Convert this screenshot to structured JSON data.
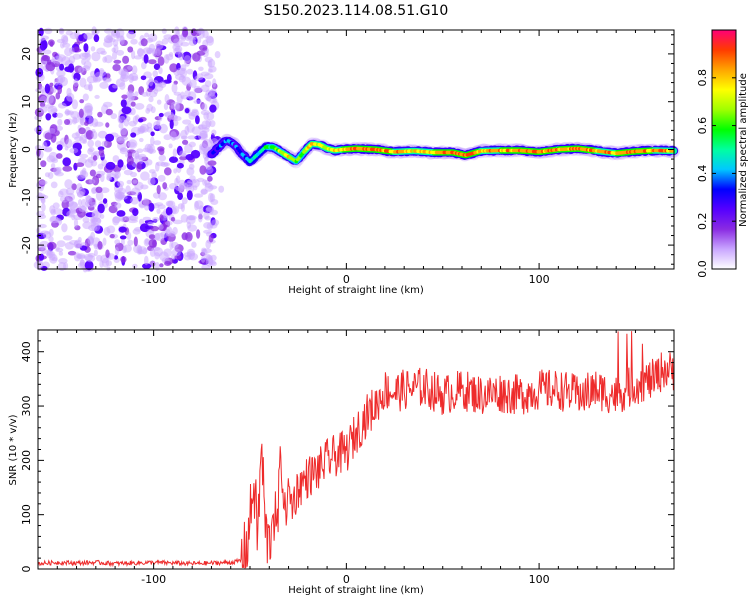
{
  "title": "S150.2023.114.08.51.G10",
  "colors": {
    "snr_line": "#ee2b2b",
    "frame": "#000000",
    "colormap": [
      "#ffffff",
      "#c9a6ff",
      "#8a2be2",
      "#5500ff",
      "#0000ff",
      "#00c8ff",
      "#00ffa0",
      "#00ff00",
      "#a0ff00",
      "#ffff00",
      "#ffa500",
      "#ff3b00",
      "#ff0077"
    ]
  },
  "chart_data": [
    {
      "type": "heatmap",
      "name": "spectrogram",
      "xlabel": "Height of straight line (km)",
      "ylabel": "Frequency (Hz)",
      "xlim": [
        -160,
        170
      ],
      "ylim": [
        -25,
        25
      ],
      "xticks": [
        -100,
        0,
        100
      ],
      "yticks": [
        -20,
        -10,
        0,
        10,
        20
      ],
      "colorbar": {
        "label": "Normalized spectral amplitude",
        "range": [
          0.0,
          1.0
        ],
        "ticks": [
          "0.0",
          "0.2",
          "0.4",
          "0.6",
          "0.8"
        ],
        "tick_values": [
          0.0,
          0.2,
          0.4,
          0.6,
          0.8
        ]
      },
      "noise_region_x": [
        -160,
        -68
      ],
      "signal_ridge": {
        "x": [
          -70,
          -66,
          -62,
          -58,
          -54,
          -50,
          -46,
          -42,
          -38,
          -34,
          -30,
          -26,
          -22,
          -18,
          -14,
          -10,
          -6,
          -2,
          5,
          15,
          25,
          35,
          45,
          55,
          62,
          70,
          80,
          90,
          100,
          110,
          120,
          130,
          140,
          150,
          160,
          170
        ],
        "freq_hz": [
          -1.0,
          0.5,
          2.0,
          1.0,
          -1.0,
          -2.5,
          -1.0,
          0.5,
          0.5,
          -0.5,
          -1.5,
          -2.5,
          -0.5,
          1.2,
          1.0,
          0.2,
          -0.2,
          0.0,
          0.2,
          0.0,
          -0.5,
          -0.3,
          -0.6,
          -0.6,
          -1.2,
          -0.3,
          -0.2,
          -0.2,
          -0.5,
          0.0,
          0.2,
          -0.3,
          -0.8,
          -0.4,
          -0.2,
          -0.3
        ],
        "amplitude": [
          0.35,
          0.4,
          0.45,
          0.4,
          0.45,
          0.5,
          0.55,
          0.6,
          0.7,
          0.75,
          0.8,
          0.7,
          0.75,
          0.85,
          0.8,
          0.8,
          0.85,
          0.9,
          0.95,
          0.95,
          0.9,
          0.85,
          0.9,
          0.95,
          0.95,
          0.9,
          0.9,
          0.95,
          0.95,
          0.9,
          0.95,
          0.9,
          0.9,
          0.95,
          0.9,
          0.9
        ]
      }
    },
    {
      "type": "line",
      "name": "snr",
      "xlabel": "Height of straight line (km)",
      "ylabel": "SNR (10 * v/v)",
      "xlim": [
        -160,
        170
      ],
      "ylim": [
        0,
        440
      ],
      "xticks": [
        -100,
        0,
        100
      ],
      "yticks": [
        0,
        100,
        200,
        300,
        400
      ],
      "series": [
        {
          "x": [
            -160,
            -150,
            -140,
            -130,
            -120,
            -110,
            -100,
            -90,
            -80,
            -70,
            -60,
            -55,
            -52,
            -50,
            -48,
            -46,
            -44,
            -42,
            -40,
            -38,
            -36,
            -34,
            -32,
            -30,
            -28,
            -25,
            -20,
            -15,
            -10,
            -5,
            0,
            5,
            10,
            15,
            20,
            25,
            30,
            40,
            50,
            60,
            70,
            80,
            90,
            100,
            110,
            120,
            130,
            140,
            150,
            160,
            165,
            170
          ],
          "y": [
            10,
            12,
            11,
            12,
            10,
            11,
            12,
            11,
            10,
            11,
            12,
            15,
            35,
            90,
            160,
            60,
            230,
            70,
            40,
            120,
            60,
            215,
            100,
            140,
            120,
            150,
            170,
            180,
            200,
            210,
            215,
            250,
            280,
            300,
            330,
            325,
            330,
            335,
            320,
            330,
            320,
            325,
            320,
            330,
            330,
            320,
            330,
            320,
            340,
            350,
            370,
            360
          ]
        }
      ]
    }
  ]
}
